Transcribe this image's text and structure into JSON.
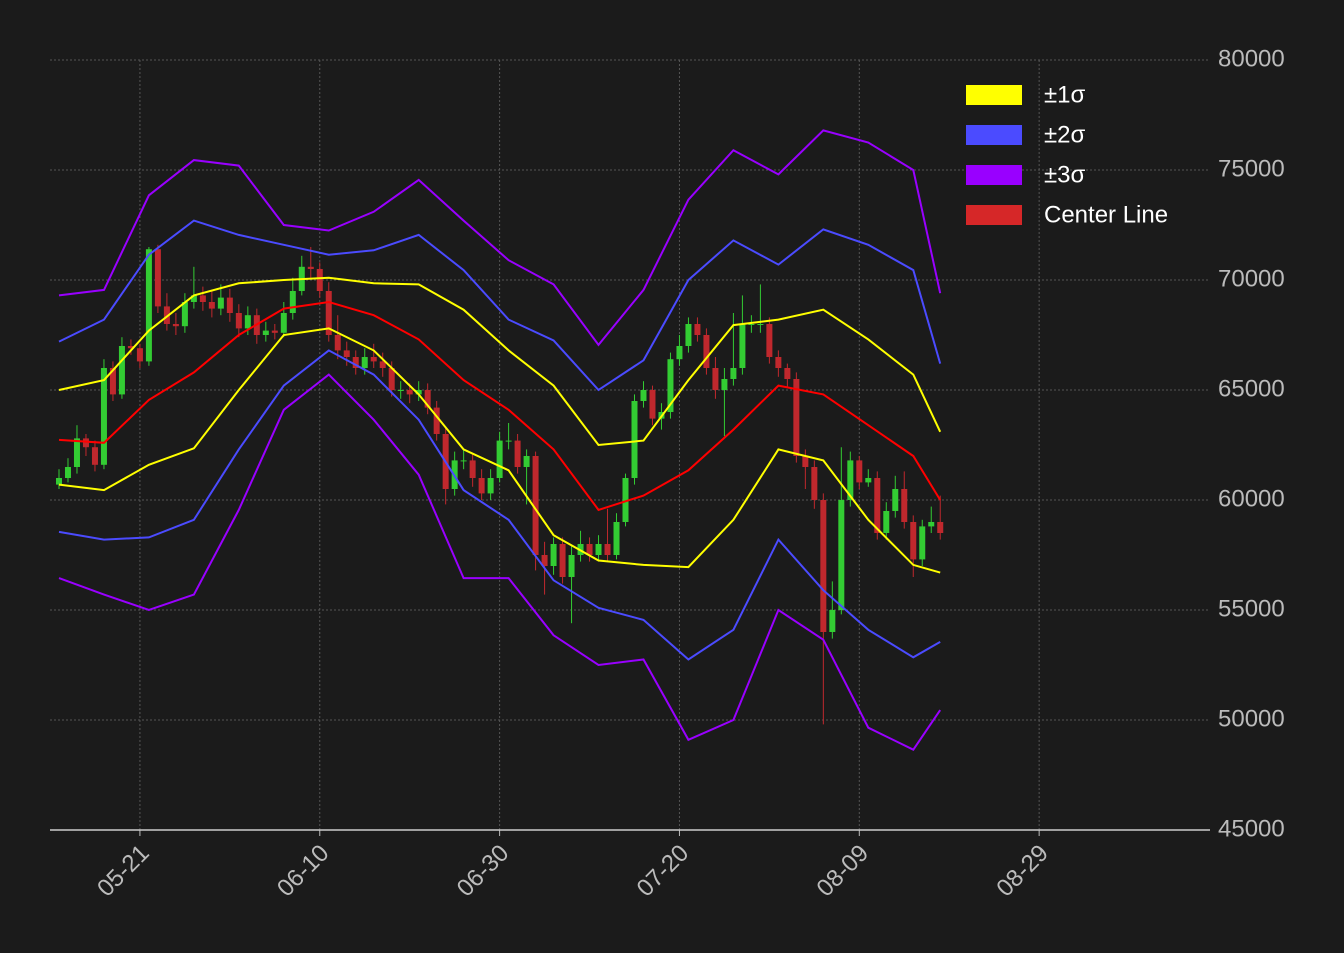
{
  "chart_data": {
    "type": "candlestick",
    "background": "#1b1b1b",
    "up_color": "#33cc33",
    "down_color": "#c0282d",
    "grid": true,
    "xlim": [
      "05-11",
      "09-17"
    ],
    "xticks": [
      "05-21",
      "06-10",
      "06-30",
      "07-20",
      "08-09",
      "08-29"
    ],
    "ylim": [
      45000,
      80000
    ],
    "yticks": [
      45000,
      50000,
      55000,
      60000,
      65000,
      70000,
      75000,
      80000
    ],
    "legend": "upper right",
    "x": [
      "05-12",
      "05-13",
      "05-14",
      "05-15",
      "05-16",
      "05-17",
      "05-18",
      "05-19",
      "05-20",
      "05-21",
      "05-22",
      "05-23",
      "05-24",
      "05-25",
      "05-26",
      "05-27",
      "05-28",
      "05-29",
      "05-30",
      "05-31",
      "06-01",
      "06-02",
      "06-03",
      "06-04",
      "06-05",
      "06-06",
      "06-07",
      "06-08",
      "06-09",
      "06-10",
      "06-11",
      "06-12",
      "06-13",
      "06-14",
      "06-15",
      "06-16",
      "06-17",
      "06-18",
      "06-19",
      "06-20",
      "06-21",
      "06-22",
      "06-23",
      "06-24",
      "06-25",
      "06-26",
      "06-27",
      "06-28",
      "06-29",
      "06-30",
      "07-01",
      "07-02",
      "07-03",
      "07-04",
      "07-05",
      "07-06",
      "07-07",
      "07-08",
      "07-09",
      "07-10",
      "07-11",
      "07-12",
      "07-13",
      "07-14",
      "07-15",
      "07-16",
      "07-17",
      "07-18",
      "07-19",
      "07-20",
      "07-21",
      "07-22",
      "07-23",
      "07-24",
      "07-25",
      "07-26",
      "07-27",
      "07-28",
      "07-29",
      "07-30",
      "07-31",
      "08-01",
      "08-02",
      "08-03",
      "08-04",
      "08-05",
      "08-06",
      "08-07",
      "08-08",
      "08-09",
      "08-10",
      "08-11",
      "08-12",
      "08-13",
      "08-14",
      "08-15",
      "08-16",
      "08-17",
      "08-18"
    ],
    "open": [
      60700,
      61000,
      61500,
      62800,
      62400,
      61600,
      66000,
      64800,
      67000,
      66900,
      66300,
      71400,
      68800,
      68000,
      67900,
      69000,
      69300,
      69000,
      68700,
      69200,
      68500,
      67800,
      68400,
      67500,
      67700,
      67600,
      68500,
      69500,
      70600,
      70500,
      69500,
      67500,
      66800,
      66500,
      66000,
      66500,
      66300,
      66000,
      65000,
      65000,
      64800,
      65000,
      64200,
      63000,
      60500,
      61800,
      61800,
      61000,
      60300,
      61000,
      62700,
      62700,
      61500,
      62000,
      57500,
      57000,
      58000,
      56500,
      57500,
      58000,
      57500,
      58000,
      57500,
      59000,
      61000,
      64500,
      65000,
      63700,
      64000,
      66400,
      67000,
      68000,
      67500,
      66000,
      65000,
      65500,
      66000,
      68000,
      68000,
      68000,
      66500,
      66000,
      65500,
      62000,
      61500,
      60000,
      54000,
      55000,
      60000,
      61800,
      60800,
      61000,
      58500,
      59500,
      60500,
      59000,
      57300,
      58800,
      59000
    ],
    "high": [
      61400,
      61900,
      63400,
      63000,
      62700,
      66400,
      66300,
      67400,
      67300,
      67100,
      71500,
      71600,
      69400,
      68500,
      69400,
      70600,
      69700,
      69500,
      69800,
      69600,
      68900,
      68800,
      68700,
      68100,
      68000,
      69000,
      70100,
      71100,
      71500,
      70800,
      69900,
      68400,
      67200,
      66800,
      66900,
      67100,
      66700,
      66300,
      65400,
      65300,
      65400,
      65300,
      64500,
      63300,
      62200,
      62300,
      62100,
      61400,
      61400,
      63100,
      63500,
      63000,
      62300,
      62200,
      58100,
      58300,
      58300,
      57900,
      58600,
      58300,
      58400,
      59600,
      59400,
      61200,
      64800,
      65400,
      65200,
      64400,
      66700,
      67500,
      68300,
      68300,
      67800,
      66500,
      66000,
      68500,
      69300,
      68400,
      69800,
      68300,
      66800,
      66200,
      65800,
      62300,
      61800,
      60300,
      56300,
      62400,
      62200,
      62000,
      61400,
      61300,
      59900,
      61100,
      61300,
      59300,
      59100,
      59700,
      60200
    ],
    "low": [
      60500,
      60800,
      61200,
      62000,
      61300,
      61400,
      64500,
      64600,
      66600,
      66000,
      66100,
      68500,
      67700,
      67500,
      67600,
      68700,
      68600,
      68300,
      68400,
      68100,
      67400,
      67500,
      67100,
      67200,
      67300,
      67400,
      68200,
      69300,
      70100,
      69200,
      67200,
      66400,
      66100,
      65700,
      65700,
      66000,
      65600,
      64700,
      64600,
      64400,
      64500,
      63900,
      62700,
      59800,
      60200,
      61400,
      60600,
      60000,
      60000,
      60800,
      62300,
      61200,
      59800,
      56800,
      55700,
      56600,
      56200,
      54400,
      57200,
      57200,
      57200,
      57200,
      57300,
      58800,
      60700,
      64200,
      63400,
      63200,
      63700,
      66100,
      66700,
      67200,
      65700,
      64600,
      62900,
      65200,
      65700,
      67600,
      67600,
      66200,
      65600,
      65100,
      61700,
      60500,
      59600,
      49800,
      53700,
      54800,
      59700,
      60500,
      60600,
      58200,
      58200,
      59200,
      58700,
      56500,
      57000,
      58500,
      58200
    ],
    "close": [
      61000,
      61500,
      62800,
      62400,
      61600,
      66000,
      64800,
      67000,
      66900,
      66300,
      71400,
      68800,
      68000,
      67900,
      69000,
      69300,
      69000,
      68700,
      69200,
      68500,
      67800,
      68400,
      67500,
      67700,
      67600,
      68500,
      69500,
      70600,
      70500,
      69500,
      67500,
      66800,
      66500,
      66000,
      66500,
      66300,
      66000,
      65000,
      65000,
      64800,
      65000,
      64200,
      63000,
      60500,
      61800,
      61800,
      61000,
      60300,
      61000,
      62700,
      62700,
      61500,
      62000,
      57500,
      57000,
      58000,
      56500,
      57500,
      58000,
      57500,
      58000,
      57500,
      59000,
      61000,
      64500,
      65000,
      63700,
      64000,
      66400,
      67000,
      68000,
      67500,
      66000,
      65000,
      65500,
      66000,
      68000,
      68000,
      68000,
      66500,
      66000,
      65500,
      62000,
      61500,
      60000,
      54000,
      55000,
      60000,
      61800,
      60800,
      61000,
      58500,
      59500,
      60500,
      59000,
      57300,
      58800,
      59000,
      58500
    ],
    "line_x": [
      "05-12",
      "05-17",
      "05-22",
      "05-27",
      "06-01",
      "06-06",
      "06-11",
      "06-16",
      "06-21",
      "06-26",
      "07-01",
      "07-06",
      "07-11",
      "07-16",
      "07-21",
      "07-26",
      "07-31",
      "08-05",
      "08-10",
      "08-15",
      "08-18"
    ],
    "bands": [
      {
        "name": "±1σ",
        "color": "#ffff00",
        "upper": [
          65000,
          65450,
          67700,
          69300,
          69850,
          70000,
          70100,
          69850,
          69800,
          68650,
          66800,
          65200,
          62500,
          62700,
          65450,
          67950,
          68200,
          68650,
          67300,
          65700,
          63100
        ],
        "lower": [
          60700,
          60450,
          61600,
          62350,
          65000,
          67500,
          67800,
          66800,
          64800,
          62300,
          61350,
          58400,
          57250,
          57050,
          56950,
          59100,
          62300,
          61800,
          59100,
          57050,
          56700
        ]
      },
      {
        "name": "±2σ",
        "color": "#4b4bff",
        "upper": [
          67200,
          68200,
          71150,
          72700,
          72050,
          71600,
          71150,
          71350,
          72050,
          70450,
          68200,
          67250,
          65000,
          66350,
          70000,
          71800,
          70700,
          72300,
          71600,
          70450,
          66200
        ],
        "lower": [
          58550,
          58200,
          58300,
          59100,
          62300,
          65200,
          66800,
          65700,
          63650,
          60450,
          59100,
          56350,
          55100,
          54550,
          52750,
          54100,
          58200,
          55900,
          54100,
          52850,
          53550
        ]
      },
      {
        "name": "±3σ",
        "color": "#9900ff",
        "upper": [
          69300,
          69550,
          73850,
          75450,
          75200,
          72500,
          72250,
          73100,
          74550,
          72700,
          70900,
          69800,
          67050,
          69550,
          73650,
          75900,
          74800,
          76800,
          76250,
          75000,
          69400
        ],
        "lower": [
          56450,
          55700,
          55000,
          55700,
          59550,
          64100,
          65700,
          63650,
          61150,
          56450,
          56450,
          53850,
          52500,
          52750,
          49100,
          50000,
          55000,
          53650,
          49650,
          48650,
          50450
        ]
      }
    ],
    "center": {
      "name": "Center Line",
      "color": "#d62728",
      "line_color": "#ff0000",
      "values": [
        62730,
        62600,
        64550,
        65800,
        67500,
        68700,
        69000,
        68400,
        67300,
        65450,
        64100,
        62300,
        59550,
        60200,
        61350,
        63200,
        65200,
        64800,
        63400,
        62000,
        60000
      ]
    }
  }
}
